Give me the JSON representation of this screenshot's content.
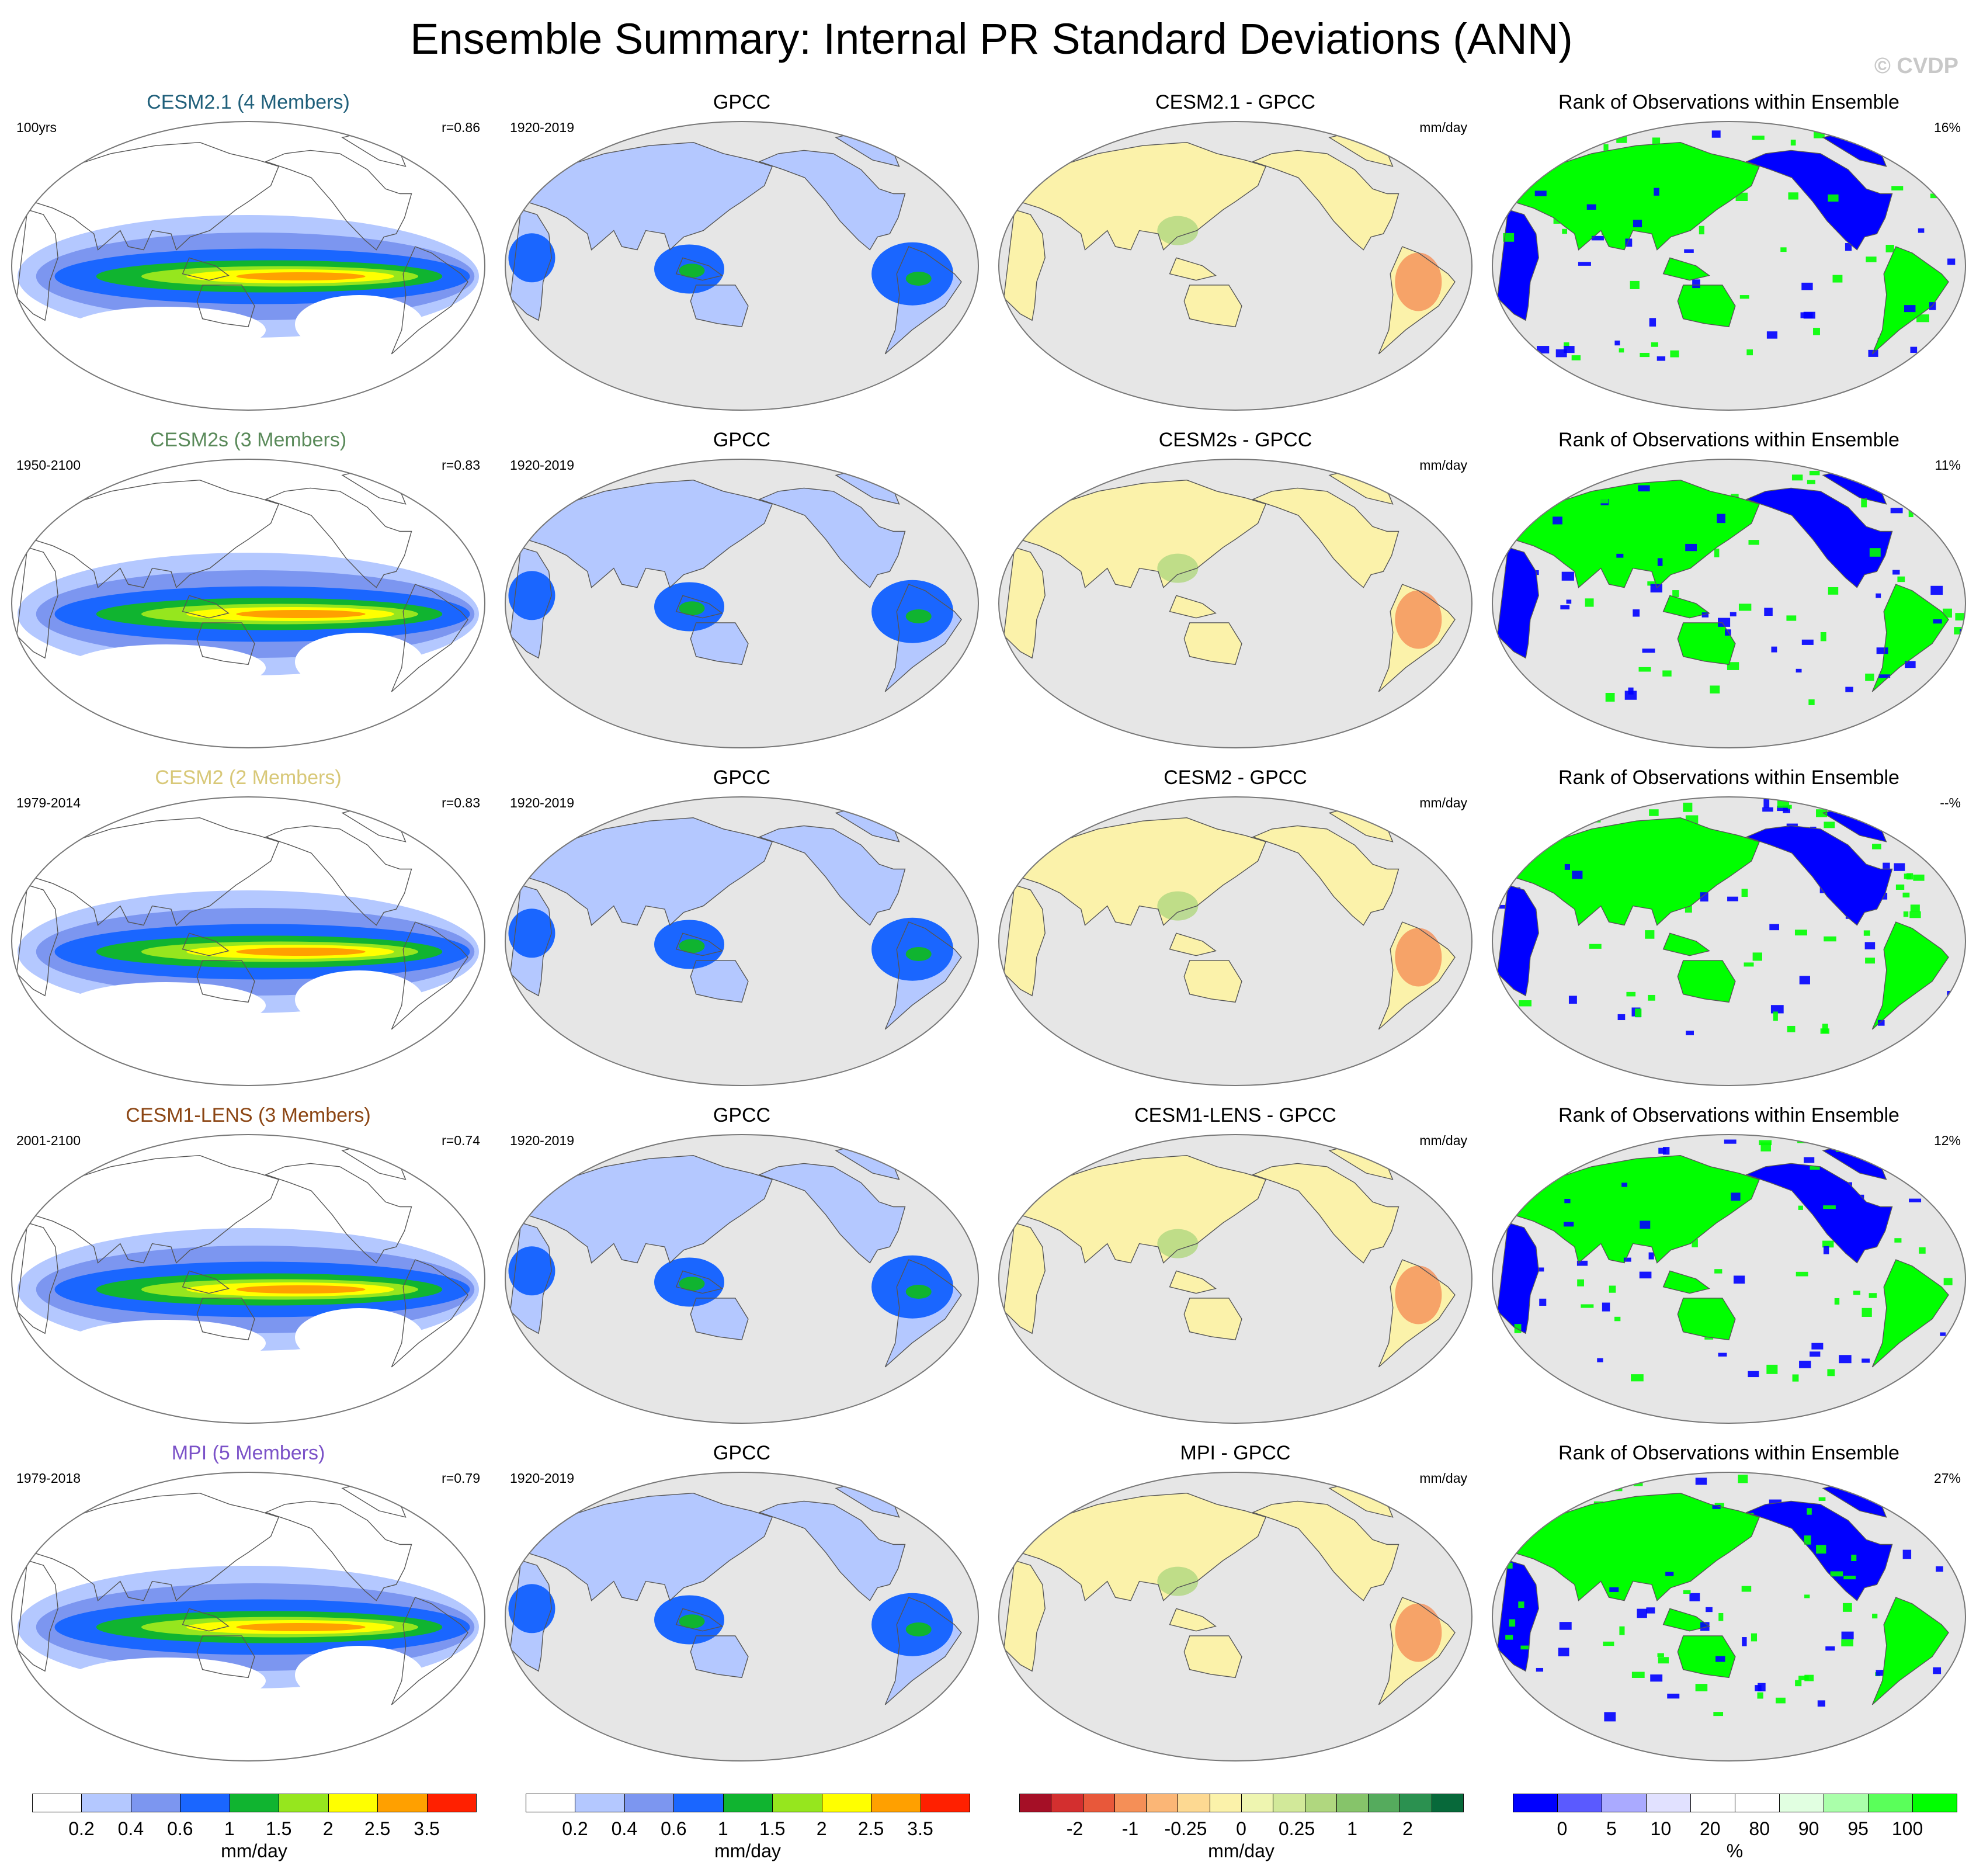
{
  "title": "Ensemble Summary: Internal PR Standard Deviations (ANN)",
  "watermark": "© CVDP",
  "columns": {
    "obs_title": "GPCC",
    "rank_title": "Rank of Observations within Ensemble",
    "diff_unit": "mm/day"
  },
  "rows": [
    {
      "model": "CESM2.1 (4 Members)",
      "model_color": "#1f5f7a",
      "period": "100yrs",
      "r": "r=0.86",
      "obs_period": "1920-2019",
      "diff_title": "CESM2.1 - GPCC",
      "rank_pct": "16%"
    },
    {
      "model": "CESM2s (3 Members)",
      "model_color": "#5a8a5a",
      "period": "1950-2100",
      "r": "r=0.83",
      "obs_period": "1920-2019",
      "diff_title": "CESM2s - GPCC",
      "rank_pct": "11%"
    },
    {
      "model": "CESM2 (2 Members)",
      "model_color": "#d8c878",
      "period": "1979-2014",
      "r": "r=0.83",
      "obs_period": "1920-2019",
      "diff_title": "CESM2 - GPCC",
      "rank_pct": "--%"
    },
    {
      "model": "CESM1-LENS (3 Members)",
      "model_color": "#8b4513",
      "period": "2001-2100",
      "r": "r=0.74",
      "obs_period": "1920-2019",
      "diff_title": "CESM1-LENS - GPCC",
      "rank_pct": "12%"
    },
    {
      "model": "MPI (5 Members)",
      "model_color": "#7b52c8",
      "period": "1979-2018",
      "r": "r=0.79",
      "obs_period": "1920-2019",
      "diff_title": "MPI - GPCC",
      "rank_pct": "27%"
    }
  ],
  "colorbars": [
    {
      "unit": "mm/day",
      "colors": [
        "#ffffff",
        "#b4c8ff",
        "#7c96f0",
        "#1a66ff",
        "#10b430",
        "#96e61e",
        "#ffff00",
        "#ffa000",
        "#ff2000"
      ],
      "labels": [
        "0.2",
        "0.4",
        "0.6",
        "1",
        "1.5",
        "2",
        "2.5",
        "3.5"
      ]
    },
    {
      "unit": "mm/day",
      "colors": [
        "#ffffff",
        "#b4c8ff",
        "#7c96f0",
        "#1a66ff",
        "#10b430",
        "#96e61e",
        "#ffff00",
        "#ffa000",
        "#ff2000"
      ],
      "labels": [
        "0.2",
        "0.4",
        "0.6",
        "1",
        "1.5",
        "2",
        "2.5",
        "3.5"
      ]
    },
    {
      "unit": "mm/day",
      "colors": [
        "#a50f26",
        "#d32f2f",
        "#e8583a",
        "#f58f57",
        "#fbb676",
        "#fdd992",
        "#fbf2aa",
        "#eef5b0",
        "#d2e99a",
        "#b0d77f",
        "#86c46a",
        "#55ab5d",
        "#2b9150",
        "#07693a"
      ],
      "labels": [
        "-2",
        "-1",
        "-0.25",
        "0",
        "0.25",
        "1",
        "2"
      ]
    },
    {
      "unit": "%",
      "colors": [
        "#0000ff",
        "#5a5aff",
        "#aaaaff",
        "#e1e1ff",
        "#ffffff",
        "#ffffff",
        "#e1ffe1",
        "#aaffaa",
        "#5aff5a",
        "#00ff00"
      ],
      "labels": [
        "0",
        "5",
        "10",
        "20",
        "80",
        "90",
        "95",
        "100"
      ]
    }
  ]
}
